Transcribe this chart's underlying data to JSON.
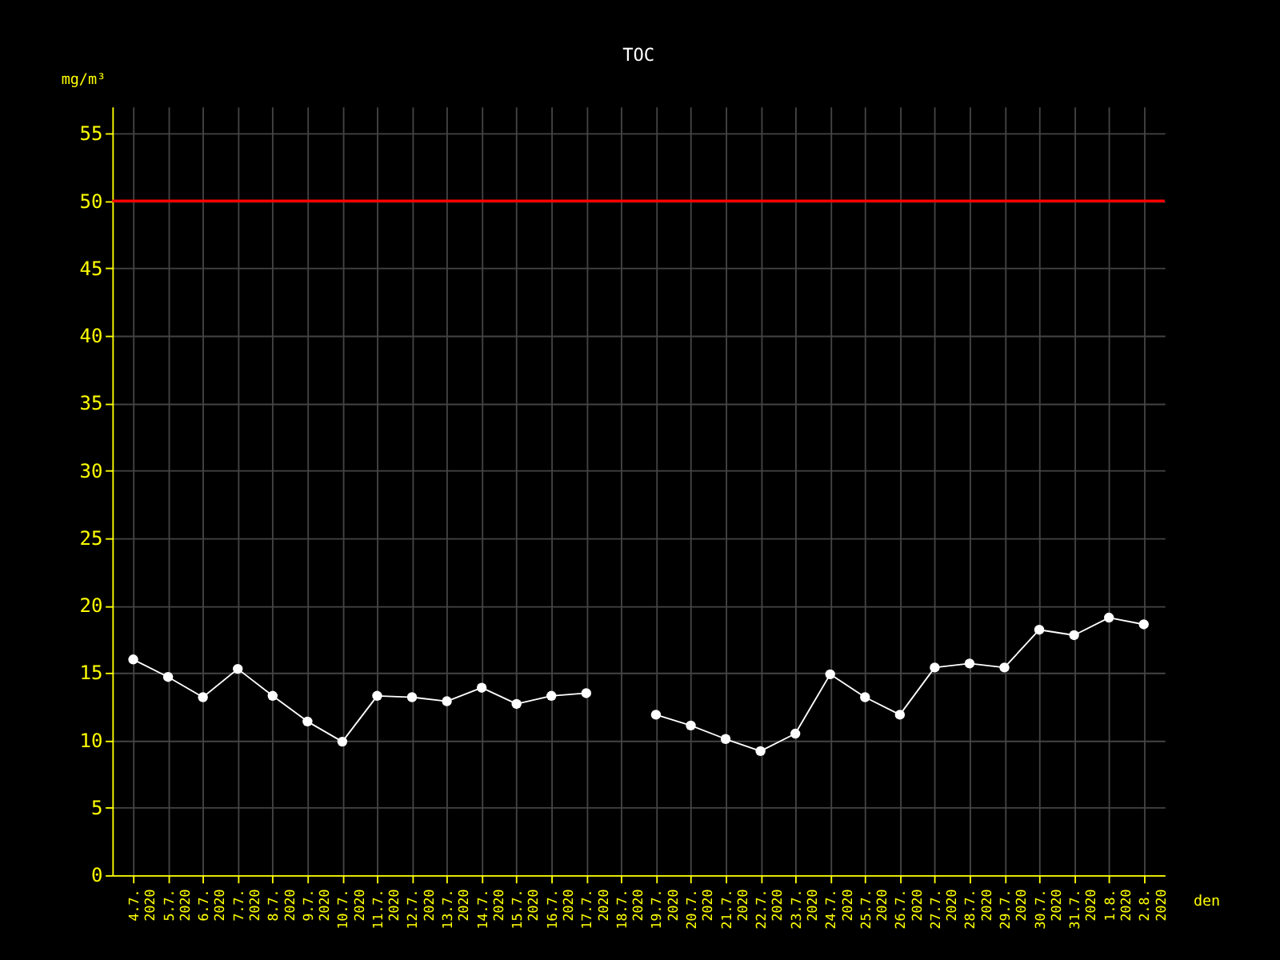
{
  "chart_data": {
    "type": "line",
    "title": "TOC",
    "xlabel": "den",
    "ylabel": "mg/m³",
    "categories": [
      "4.7. 2020",
      "5.7. 2020",
      "6.7. 2020",
      "7.7. 2020",
      "8.7. 2020",
      "9.7. 2020",
      "10.7. 2020",
      "11.7. 2020",
      "12.7. 2020",
      "13.7. 2020",
      "14.7. 2020",
      "15.7. 2020",
      "16.7. 2020",
      "17.7. 2020",
      "18.7. 2020",
      "19.7. 2020",
      "20.7. 2020",
      "21.7. 2020",
      "22.7. 2020",
      "23.7. 2020",
      "24.7. 2020",
      "25.7. 2020",
      "26.7. 2020",
      "27.7. 2020",
      "28.7. 2020",
      "29.7. 2020",
      "30.7. 2020",
      "31.7. 2020",
      "1.8. 2020",
      "2.8. 2020"
    ],
    "series": [
      {
        "color": "#ffffff",
        "values": [
          16.0,
          14.7,
          13.2,
          15.3,
          13.3,
          11.4,
          9.9,
          13.3,
          13.2,
          12.9,
          13.9,
          12.7,
          13.3,
          13.5,
          null,
          11.9,
          11.1,
          10.1,
          9.2,
          10.5,
          14.9,
          13.2,
          11.9,
          15.4,
          15.7,
          15.4,
          18.2,
          17.8,
          19.1,
          18.6
        ]
      }
    ],
    "ylim": [
      0,
      57
    ],
    "yticks": [
      0,
      5,
      10,
      15,
      20,
      25,
      30,
      35,
      40,
      45,
      50,
      55
    ],
    "ref_lines": [
      {
        "axis": "y",
        "value": 50,
        "color": "#ff0000"
      }
    ],
    "grid": true,
    "marker": "circle",
    "line_style": "solid"
  }
}
